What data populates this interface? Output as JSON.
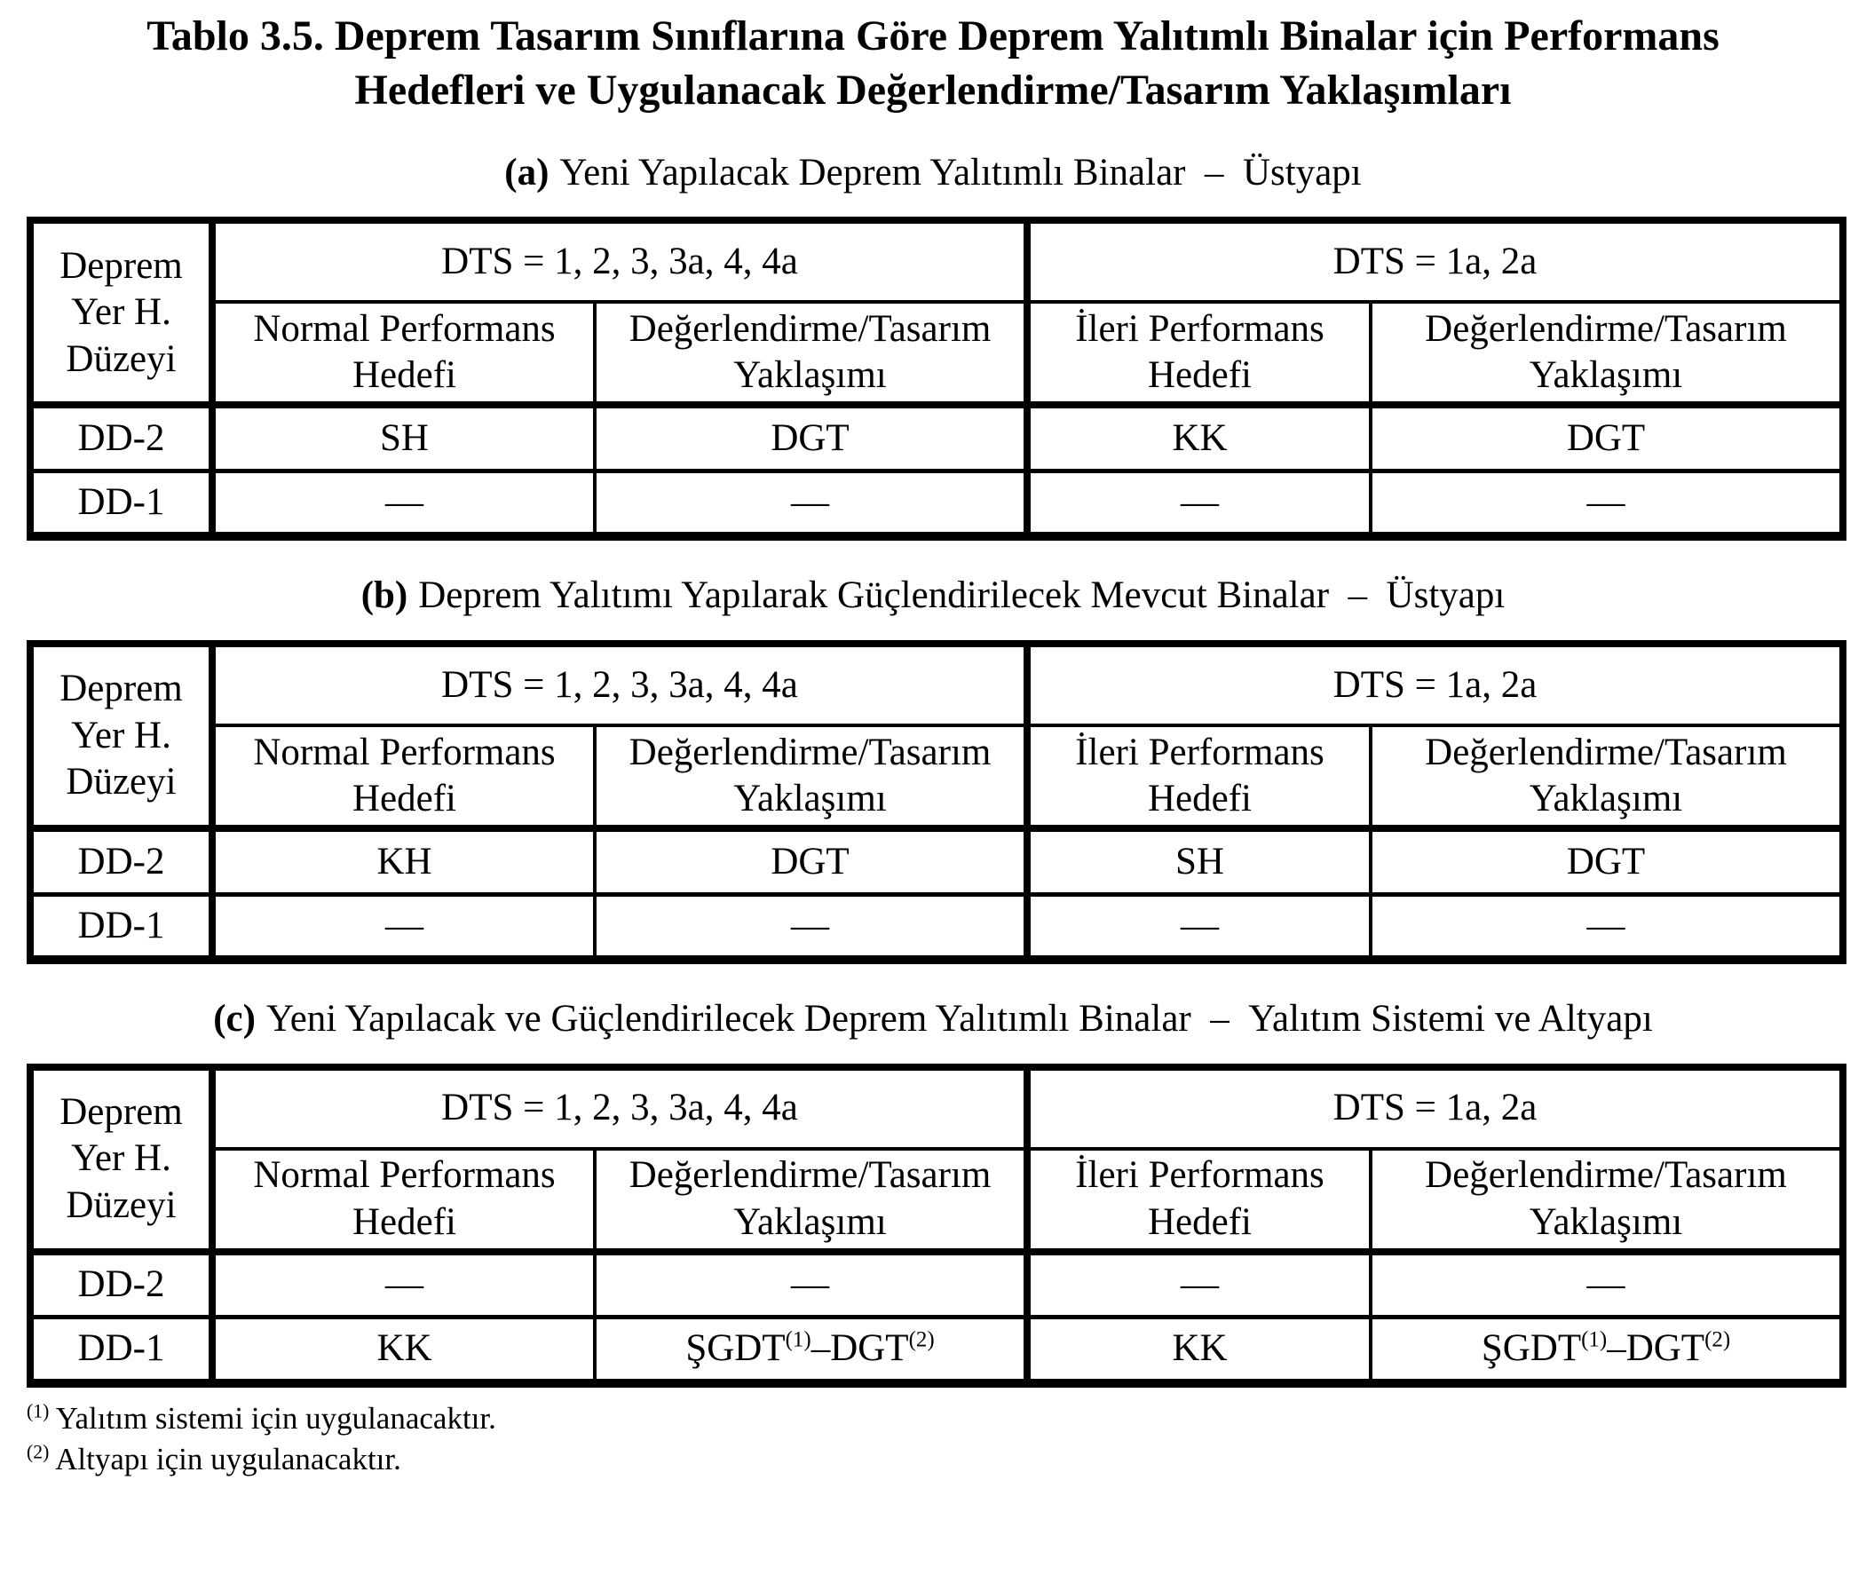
{
  "title": {
    "line1": "Tablo 3.5. Deprem Tasarım Sınıflarına Göre Deprem Yalıtımlı Binalar için Performans",
    "line2": "Hedefleri ve Uygulanacak Değerlendirme/Tasarım Yaklaşımları"
  },
  "header": {
    "corner_lines": [
      "Deprem",
      "Yer H.",
      "Düzeyi"
    ],
    "groups": [
      "DTS = 1, 2, 3, 3a, 4, 4a",
      "DTS = 1a, 2a"
    ],
    "subcols": [
      "Normal Performans Hedefi",
      "Değerlendirme/Tasarım Yaklaşımı",
      "İleri Performans Hedefi",
      "Değerlendirme/Tasarım Yaklaşımı"
    ]
  },
  "tables": [
    {
      "caption_prefix": "(a)",
      "caption": "Yeni Yapılacak Deprem Yalıtımlı Binalar – Üstyapı",
      "rows": [
        {
          "label": "DD-2",
          "cells": [
            "SH",
            "DGT",
            "KK",
            "DGT"
          ]
        },
        {
          "label": "DD-1",
          "cells": [
            "—",
            "—",
            "—",
            "—"
          ]
        }
      ]
    },
    {
      "caption_prefix": "(b)",
      "caption": "Deprem Yalıtımı Yapılarak Güçlendirilecek Mevcut Binalar – Üstyapı",
      "rows": [
        {
          "label": "DD-2",
          "cells": [
            "KH",
            "DGT",
            "SH",
            "DGT"
          ]
        },
        {
          "label": "DD-1",
          "cells": [
            "—",
            "—",
            "—",
            "—"
          ]
        }
      ]
    },
    {
      "caption_prefix": "(c)",
      "caption": "Yeni Yapılacak ve Güçlendirilecek Deprem Yalıtımlı Binalar – Yalıtım Sistemi ve Altyapı",
      "rows": [
        {
          "label": "DD-2",
          "cells": [
            "—",
            "—",
            "—",
            "—"
          ]
        },
        {
          "label": "DD-1",
          "cells": [
            "KK",
            {
              "a": "ŞGDT",
              "a_sup": "(1)",
              "dash": "–",
              "b": "DGT",
              "b_sup": "(2)"
            },
            "KK",
            {
              "a": "ŞGDT",
              "a_sup": "(1)",
              "dash": "–",
              "b": "DGT",
              "b_sup": "(2)"
            }
          ]
        }
      ]
    }
  ],
  "footnotes": [
    {
      "marker": "(1)",
      "text": "Yalıtım sistemi için uygulanacaktır."
    },
    {
      "marker": "(2)",
      "text": "Altyapı için uygulanacaktır."
    }
  ]
}
